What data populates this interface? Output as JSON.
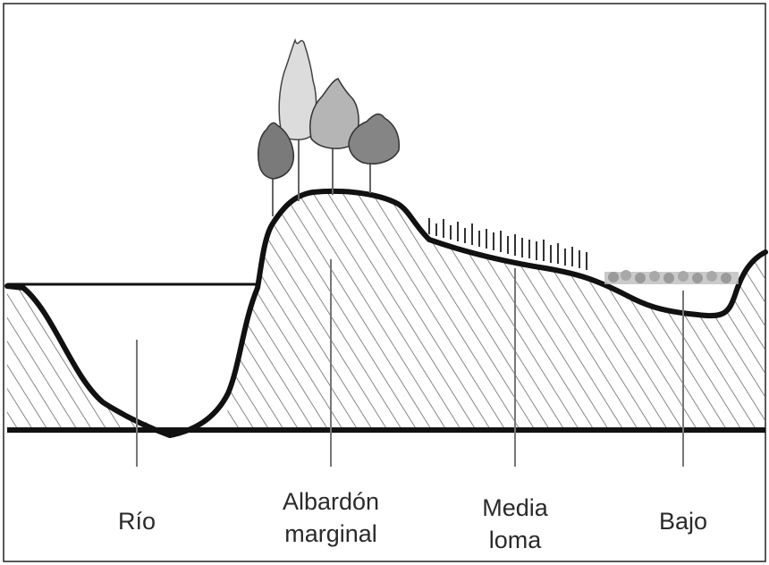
{
  "labels": {
    "rio": "Río",
    "albardon_line1": "Albardón",
    "albardon_line2": "marginal",
    "media_line1": "Media",
    "media_line2": "loma",
    "bajo": "Bajo"
  },
  "colors": {
    "ink": "#111111",
    "hatch": "#6a6a6a",
    "tree_light": "#d9d9d9",
    "tree_mid": "#b3b3b3",
    "tree_dark": "#7c7c7c",
    "grass": "#3c3c3c",
    "low_veg": "#a3a3a3"
  }
}
